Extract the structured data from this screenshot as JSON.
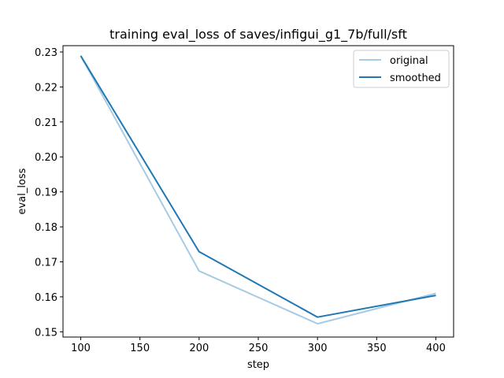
{
  "chart_data": {
    "type": "line",
    "title": "training eval_loss of saves/infigui_g1_7b/full/sft",
    "xlabel": "step",
    "ylabel": "eval_loss",
    "x": [
      100,
      200,
      300,
      400
    ],
    "series": [
      {
        "name": "original",
        "color": "#a6cbe3",
        "values": [
          0.2289,
          0.1674,
          0.1523,
          0.161
        ]
      },
      {
        "name": "smoothed",
        "color": "#1f77b4",
        "values": [
          0.2289,
          0.1729,
          0.1542,
          0.1604
        ]
      }
    ],
    "xlim": [
      85,
      415
    ],
    "ylim": [
      0.1485,
      0.2318
    ],
    "xticks": [
      100,
      150,
      200,
      250,
      300,
      350,
      400
    ],
    "yticks": [
      "0.15",
      "0.16",
      "0.17",
      "0.18",
      "0.19",
      "0.20",
      "0.21",
      "0.22",
      "0.23"
    ],
    "grid": false,
    "legend_position": "upper right"
  }
}
